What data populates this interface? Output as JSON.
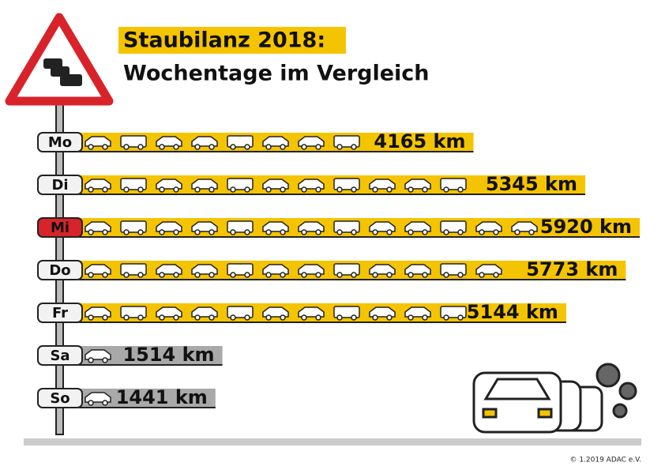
{
  "chart_data": {
    "type": "bar",
    "title": "Staubilanz 2018:",
    "subtitle": "Wochentage im Vergleich",
    "categories": [
      "Mo",
      "Di",
      "Mi",
      "Do",
      "Fr",
      "Sa",
      "So"
    ],
    "values": [
      4165,
      5345,
      5920,
      5773,
      5144,
      1514,
      1441
    ],
    "value_labels": [
      "4165 km",
      "5345 km",
      "5920 km",
      "5773 km",
      "5144 km",
      "1514 km",
      "1441 km"
    ],
    "bar_colors": [
      "#f5c400",
      "#f5c400",
      "#f5c400",
      "#f5c400",
      "#f5c400",
      "#a9a9a9",
      "#a9a9a9"
    ],
    "label_fills": [
      "#f2f2f2",
      "#f2f2f2",
      "#d8232a",
      "#f2f2f2",
      "#f2f2f2",
      "#f2f2f2",
      "#f2f2f2"
    ],
    "credit": "© 1.2019 ADAC e.V."
  }
}
